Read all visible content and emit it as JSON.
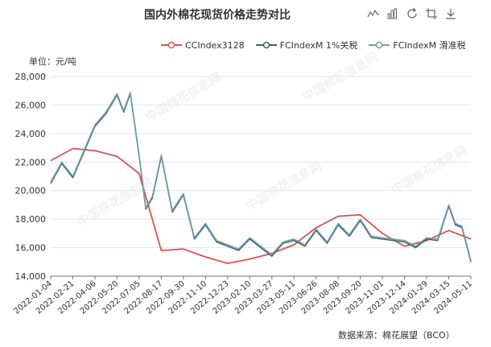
{
  "chart_data": {
    "type": "line",
    "title": "国内外棉花现货价格走势对比",
    "ylabel": "单位：元/吨",
    "ylim": [
      14000,
      28000
    ],
    "y_ticks": [
      "14,000",
      "16,000",
      "18,000",
      "20,000",
      "22,000",
      "24,000",
      "26,000",
      "28,000"
    ],
    "x_tick_labels": [
      "2022-01-04",
      "2022-02-21",
      "2022-04-06",
      "2022-05-20",
      "2022-07-05",
      "2022-08-17",
      "2022-09-30",
      "2022-11-10",
      "2022-12-23",
      "2023-02-10",
      "2023-03-27",
      "2023-05-11",
      "2023-06-26",
      "2023-08-08",
      "2023-09-20",
      "2023-11-01",
      "2023-12-14",
      "2024-01-29",
      "2024-03-15",
      "2024-05-11"
    ],
    "grid": "horizontal",
    "legend": "top-center",
    "source": "数据来源：棉花展望（BCO）",
    "series": [
      {
        "name": "CCIndex3128",
        "color": "#d9534f",
        "x": [
          0,
          1,
          2,
          3,
          4,
          5,
          6,
          7,
          8,
          9,
          10,
          11,
          12,
          13,
          14,
          15,
          16,
          17,
          18,
          19
        ],
        "values": [
          22100,
          22950,
          22800,
          22400,
          21200,
          15800,
          15900,
          15350,
          14900,
          15200,
          15600,
          16200,
          17400,
          18200,
          18300,
          17000,
          16100,
          16500,
          17200,
          16600
        ]
      },
      {
        "name": "FCIndexM 1%关税",
        "color": "#3f5f6f",
        "x": [
          0,
          0.5,
          1,
          1.5,
          2,
          2.5,
          3,
          3.3,
          3.6,
          4,
          4.3,
          4.6,
          5,
          5.5,
          6,
          6.5,
          7,
          7.5,
          8,
          8.5,
          9,
          9.5,
          10,
          10.5,
          11,
          11.5,
          12,
          12.5,
          13,
          13.5,
          14,
          14.5,
          15,
          15.5,
          16,
          16.5,
          17,
          17.5,
          18,
          18.3,
          18.6,
          19
        ],
        "values": [
          20500,
          21900,
          20900,
          22700,
          24500,
          25400,
          26700,
          25500,
          26800,
          22400,
          18700,
          19500,
          22400,
          18500,
          19700,
          16600,
          17600,
          16400,
          16100,
          15800,
          16600,
          16000,
          15400,
          16300,
          16500,
          16100,
          17200,
          16300,
          17600,
          16800,
          17900,
          16700,
          16600,
          16500,
          16400,
          16000,
          16600,
          16500,
          18900,
          17600,
          17400,
          15000
        ]
      },
      {
        "name": "FCIndexM 滑准税",
        "color": "#6fa2ad",
        "x": [
          0,
          0.5,
          1,
          1.5,
          2,
          2.5,
          3,
          3.3,
          3.6,
          4,
          4.3,
          4.6,
          5,
          5.5,
          6,
          6.5,
          7,
          7.5,
          8,
          8.5,
          9,
          9.5,
          10,
          10.5,
          11,
          11.5,
          12,
          12.5,
          13,
          13.5,
          14,
          14.5,
          15,
          15.5,
          16,
          16.5,
          17,
          17.5,
          18,
          18.3,
          18.6,
          19
        ],
        "values": [
          20600,
          22000,
          21000,
          22800,
          24600,
          25500,
          26800,
          25600,
          26900,
          22500,
          18800,
          19600,
          22500,
          18600,
          19800,
          16700,
          17700,
          16500,
          16200,
          15900,
          16700,
          16100,
          15500,
          16400,
          16600,
          16200,
          17300,
          16400,
          17700,
          16900,
          18000,
          16800,
          16700,
          16600,
          16500,
          16100,
          16700,
          16600,
          19000,
          17700,
          17500,
          15100
        ]
      }
    ]
  },
  "toolbox": [
    "line-icon",
    "bar-icon",
    "restore-icon",
    "crop-icon",
    "save-icon"
  ],
  "watermark_text": "中国棉花信息网",
  "watermark_url": "www.cottonchina.org.cn"
}
